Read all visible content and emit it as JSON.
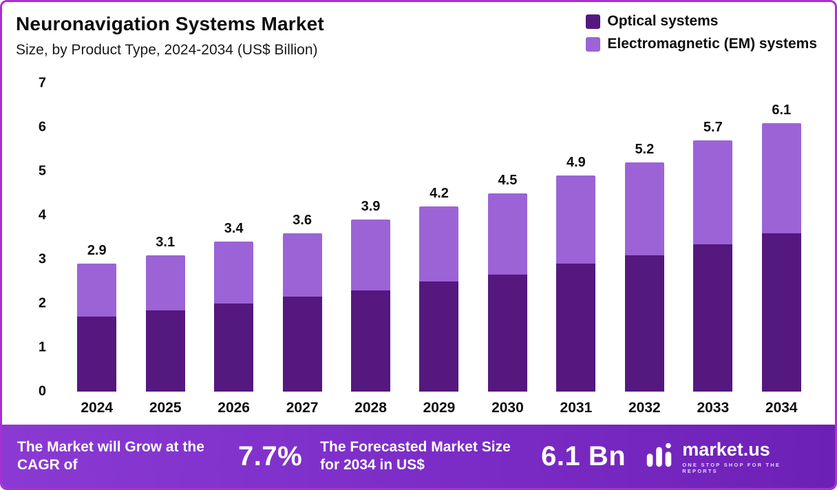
{
  "header": {
    "title": "Neuronavigation Systems Market",
    "subtitle": "Size, by Product Type, 2024-2034 (US$ Billion)"
  },
  "chart_data": {
    "type": "bar",
    "stacked": true,
    "title": "Neuronavigation Systems Market",
    "subtitle": "Size, by Product Type, 2024-2034 (US$ Billion)",
    "categories": [
      "2024",
      "2025",
      "2026",
      "2027",
      "2028",
      "2029",
      "2030",
      "2031",
      "2032",
      "2033",
      "2034"
    ],
    "series": [
      {
        "name": "Optical systems",
        "color": "#55187f",
        "values": [
          1.7,
          1.85,
          2.0,
          2.15,
          2.3,
          2.5,
          2.65,
          2.9,
          3.1,
          3.35,
          3.6
        ]
      },
      {
        "name": "Electromagnetic (EM) systems",
        "color": "#9c63d6",
        "values": [
          1.2,
          1.25,
          1.4,
          1.45,
          1.6,
          1.7,
          1.85,
          2.0,
          2.1,
          2.35,
          2.5
        ]
      }
    ],
    "totals": [
      2.9,
      3.1,
      3.4,
      3.6,
      3.9,
      4.2,
      4.5,
      4.9,
      5.2,
      5.7,
      6.1
    ],
    "total_labels": [
      "2.9",
      "3.1",
      "3.4",
      "3.6",
      "3.9",
      "4.2",
      "4.5",
      "4.9",
      "5.2",
      "5.7",
      "6.1"
    ],
    "ylim": [
      0,
      7
    ],
    "yticks": [
      0,
      1,
      2,
      3,
      4,
      5,
      6,
      7
    ],
    "legend_position": "top-right",
    "grid": false
  },
  "banner": {
    "cagr_label": "The Market will Grow at the CAGR of",
    "cagr_value": "7.7%",
    "forecast_label": "The Forecasted Market Size for 2034 in US$",
    "forecast_value": "6.1 Bn",
    "logo_text": "market.us",
    "logo_tagline": "ONE STOP SHOP FOR THE REPORTS"
  },
  "colors": {
    "frame_border": "#ab2fd0",
    "optical": "#55187f",
    "em": "#9c63d6",
    "banner_gradient_start": "#8a3ad3",
    "banner_gradient_end": "#6d20b6"
  }
}
